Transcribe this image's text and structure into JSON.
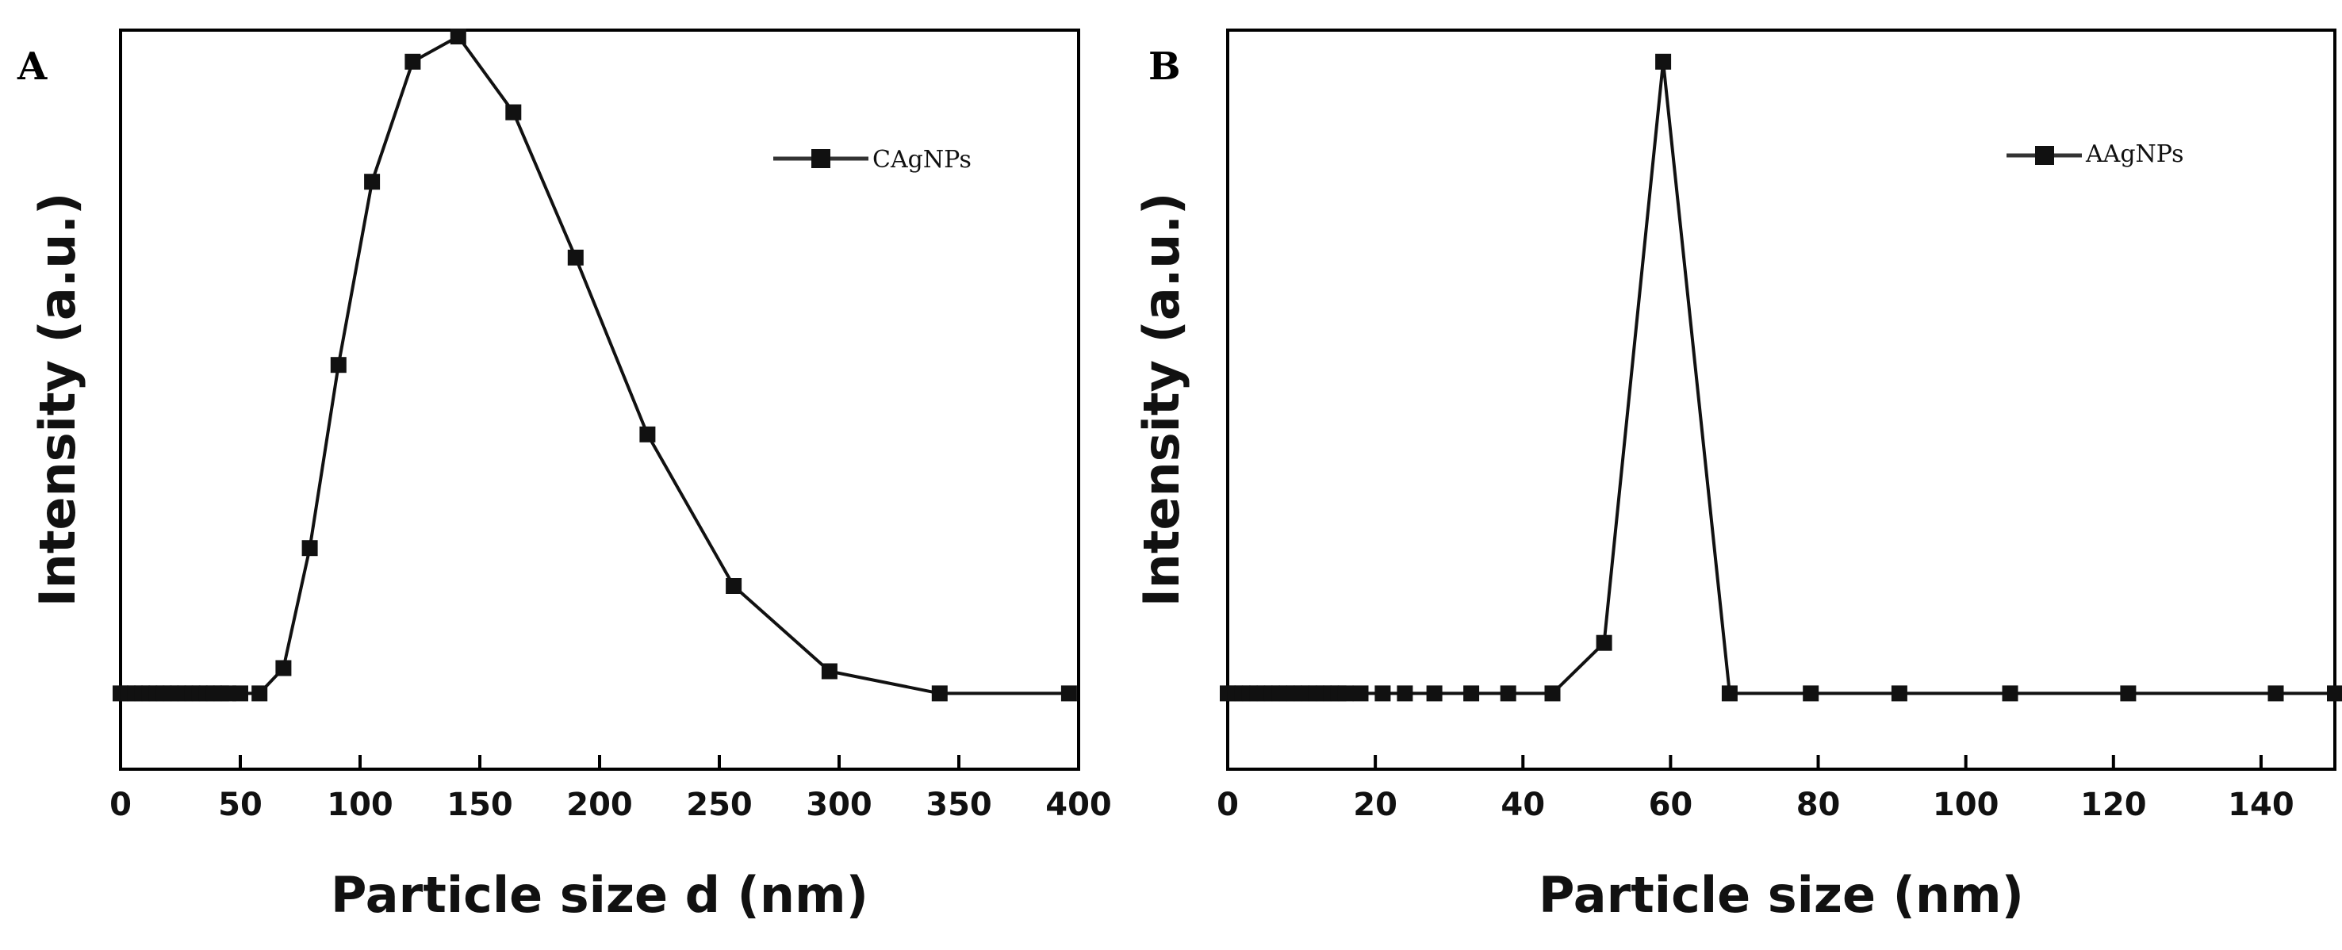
{
  "chart_data": [
    {
      "type": "line",
      "panel_label": "A",
      "xlabel": "Particle size d (nm)",
      "ylabel": "Intensity (a.u.)",
      "xlim": [
        0,
        400
      ],
      "ylim": [
        -0.12,
        1.05
      ],
      "xticks": [
        0,
        50,
        100,
        150,
        200,
        250,
        300,
        350,
        400
      ],
      "xtick_labels": [
        "0",
        "50",
        "100",
        "150",
        "200",
        "250",
        "300",
        "350",
        "400"
      ],
      "y_tick_labels_shown": false,
      "grid": false,
      "legend_position": "top-right",
      "series": [
        {
          "name": "CAgNPs",
          "x": [
            0,
            3,
            6,
            9,
            12,
            15,
            18,
            21,
            24,
            27,
            30,
            33,
            36,
            39,
            42,
            45,
            50,
            58,
            68,
            79,
            91,
            105,
            122,
            141,
            164,
            190,
            220,
            256,
            296,
            342,
            396
          ],
          "y": [
            0,
            0,
            0,
            0,
            0,
            0,
            0,
            0,
            0,
            0,
            0,
            0,
            0,
            0,
            0,
            0,
            0,
            0,
            0.04,
            0.23,
            0.52,
            0.81,
            1.0,
            1.04,
            0.92,
            0.69,
            0.41,
            0.17,
            0.035,
            0,
            0
          ]
        }
      ]
    },
    {
      "type": "line",
      "panel_label": "B",
      "xlabel": "Particle size (nm)",
      "ylabel": "Intensity (a.u.)",
      "xlim": [
        0,
        150
      ],
      "ylim": [
        -0.12,
        1.05
      ],
      "xticks": [
        0,
        20,
        40,
        60,
        80,
        100,
        120,
        140
      ],
      "xtick_labels": [
        "0",
        "20",
        "40",
        "60",
        "80",
        "100",
        "120",
        "140"
      ],
      "y_tick_labels_shown": false,
      "grid": false,
      "legend_position": "top-right",
      "series": [
        {
          "name": "AAgNPs",
          "x": [
            0,
            1,
            2,
            3,
            4,
            5,
            6,
            7,
            8,
            9,
            10,
            11,
            12,
            13,
            14,
            15,
            16,
            18,
            21,
            24,
            28,
            33,
            38,
            44,
            51,
            59,
            68,
            79,
            91,
            106,
            122,
            142,
            150
          ],
          "y": [
            0,
            0,
            0,
            0,
            0,
            0,
            0,
            0,
            0,
            0,
            0,
            0,
            0,
            0,
            0,
            0,
            0,
            0,
            0,
            0,
            0,
            0,
            0,
            0,
            0.08,
            1.0,
            0,
            0,
            0,
            0,
            0,
            0,
            0
          ]
        }
      ]
    }
  ]
}
